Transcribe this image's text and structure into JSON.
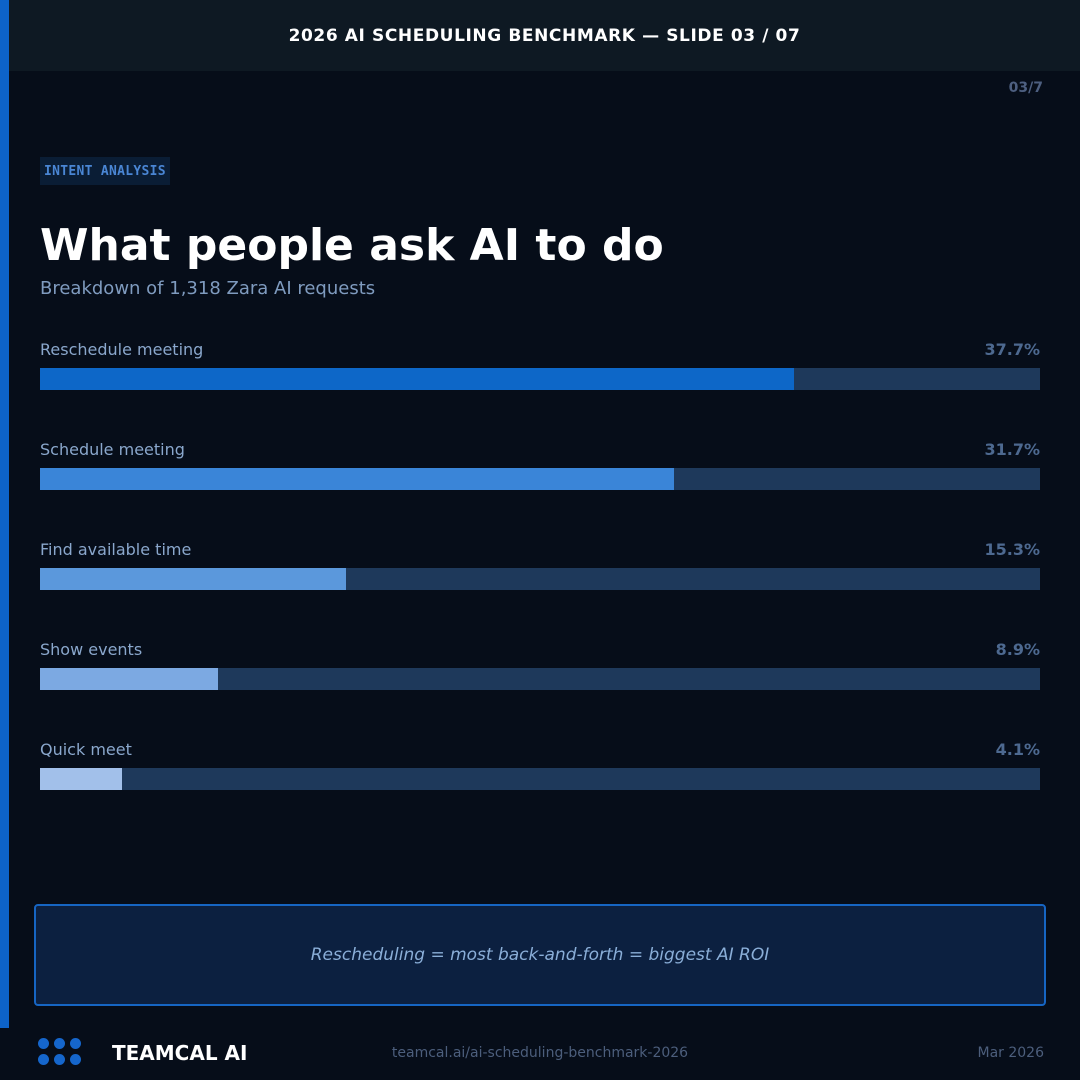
{
  "header": {
    "title": "2026 AI SCHEDULING BENCHMARK — SLIDE 03 / 07",
    "counter": "03/7"
  },
  "section_tag": "INTENT ANALYSIS",
  "title": "What people ask AI to do",
  "subtitle": "Breakdown of 1,318 Zara AI requests",
  "chart_data": {
    "type": "bar",
    "orientation": "horizontal",
    "categories": [
      "Reschedule meeting",
      "Schedule meeting",
      "Find available time",
      "Show events",
      "Quick meet"
    ],
    "values": [
      37.7,
      31.7,
      15.3,
      8.9,
      4.1
    ],
    "value_labels": [
      "37.7%",
      "31.7%",
      "15.3%",
      "8.9%",
      "4.1%"
    ],
    "bar_colors": [
      "#0d67c8",
      "#3a85d8",
      "#5b98dc",
      "#7ca9e2",
      "#a2c0ea"
    ],
    "track_color": "#1e395b",
    "xlim": [
      0,
      50
    ],
    "grid": false
  },
  "insight": "Rescheduling = most back-and-forth = biggest AI ROI",
  "footer": {
    "brand": "TEAMCAL AI",
    "url": "teamcal.ai/ai-scheduling-benchmark-2026",
    "date": "Mar 2026"
  },
  "colors": {
    "accent": "#0d63c9",
    "background": "#060d19"
  }
}
